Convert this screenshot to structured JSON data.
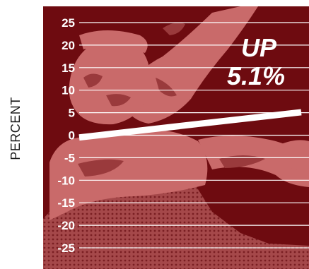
{
  "chart_data": {
    "type": "line",
    "ylabel": "PERCENT",
    "ylim": [
      -25,
      25
    ],
    "yticks": [
      25,
      20,
      15,
      10,
      5,
      0,
      -5,
      -10,
      -15,
      -20,
      -25
    ],
    "grid": true,
    "x": [
      0,
      1
    ],
    "series": [
      {
        "values": [
          -0.5,
          5.1
        ]
      }
    ],
    "annotation": {
      "line1": "UP",
      "line2": "5.1%"
    },
    "colors": {
      "panel": "#6e0b10",
      "figure": "#c96a6a",
      "figure_dark": "#9a3a3c",
      "gridline": "#ffffff",
      "series_line": "#ffffff"
    }
  }
}
